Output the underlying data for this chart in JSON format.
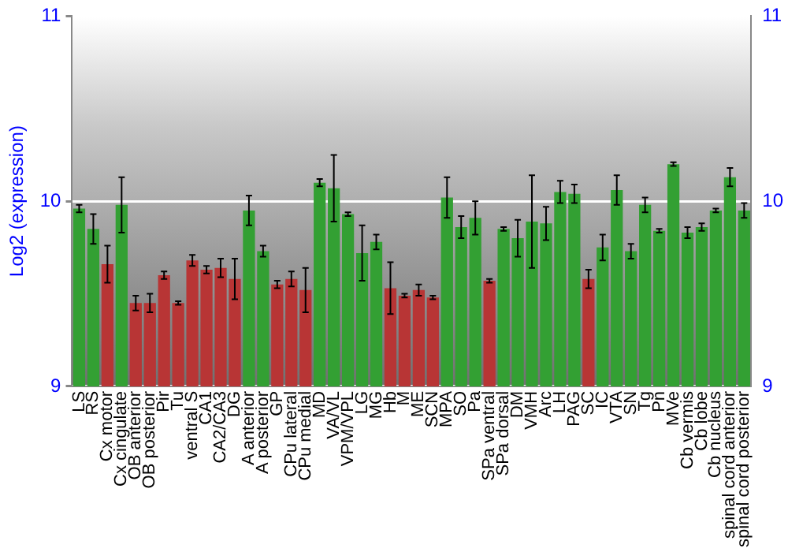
{
  "chart_data": {
    "type": "bar",
    "ylabel": "Log2 (expression)",
    "categories": [
      "LS",
      "RS",
      "Cx motor",
      "Cx cingulate",
      "OB anterior",
      "OB posterior",
      "Pir",
      "Tu",
      "ventral S",
      "CA1",
      "CA2/CA3",
      "DG",
      "A anterior",
      "A posterior",
      "GP",
      "CPu lateral",
      "CPu medial",
      "MD",
      "VA/VL",
      "VPM/VPL",
      "LG",
      "MG",
      "Hb",
      "M",
      "ME",
      "SCN",
      "MPA",
      "SO",
      "Pa",
      "SPa ventral",
      "SPa dorsal",
      "DM",
      "VMH",
      "Arc",
      "LH",
      "PAG",
      "SC",
      "IC",
      "VTA",
      "SN",
      "Tg",
      "Pn",
      "MVe",
      "Cb vermis",
      "Cb lobe",
      "Cb nucleus",
      "spinal cord anterior",
      "spinal cord posterior"
    ],
    "values": [
      9.96,
      9.85,
      9.66,
      9.98,
      9.45,
      9.45,
      9.6,
      9.45,
      9.68,
      9.63,
      9.64,
      9.58,
      9.95,
      9.73,
      9.55,
      9.58,
      9.52,
      10.1,
      10.07,
      9.93,
      9.72,
      9.78,
      9.53,
      9.49,
      9.52,
      9.48,
      10.02,
      9.86,
      9.91,
      9.57,
      9.85,
      9.8,
      9.89,
      9.88,
      10.05,
      10.04,
      9.58,
      9.75,
      10.06,
      9.73,
      9.98,
      9.84,
      10.2,
      9.83,
      9.86,
      9.95,
      10.13,
      9.95
    ],
    "errors": [
      0.02,
      0.08,
      0.1,
      0.15,
      0.04,
      0.05,
      0.02,
      0.01,
      0.03,
      0.02,
      0.05,
      0.11,
      0.08,
      0.03,
      0.02,
      0.04,
      0.12,
      0.02,
      0.18,
      0.01,
      0.15,
      0.04,
      0.14,
      0.01,
      0.03,
      0.01,
      0.11,
      0.06,
      0.09,
      0.01,
      0.01,
      0.1,
      0.25,
      0.09,
      0.06,
      0.05,
      0.05,
      0.07,
      0.08,
      0.04,
      0.04,
      0.01,
      0.01,
      0.03,
      0.02,
      0.01,
      0.05,
      0.04
    ],
    "colors": [
      "#33a033",
      "#33a033",
      "#b83535",
      "#33a033",
      "#b83535",
      "#b83535",
      "#b83535",
      "#b83535",
      "#b83535",
      "#b83535",
      "#b83535",
      "#b83535",
      "#33a033",
      "#33a033",
      "#b83535",
      "#b83535",
      "#b83535",
      "#33a033",
      "#33a033",
      "#33a033",
      "#33a033",
      "#33a033",
      "#b83535",
      "#b83535",
      "#b83535",
      "#b83535",
      "#33a033",
      "#33a033",
      "#33a033",
      "#b83535",
      "#33a033",
      "#33a033",
      "#33a033",
      "#33a033",
      "#33a033",
      "#33a033",
      "#b83535",
      "#33a033",
      "#33a033",
      "#33a033",
      "#33a033",
      "#33a033",
      "#33a033",
      "#33a033",
      "#33a033",
      "#33a033",
      "#33a033",
      "#33a033"
    ],
    "ylim": [
      9,
      11
    ],
    "yticks": [
      9,
      10,
      11
    ],
    "y2lim": [
      9,
      11
    ],
    "y2ticks": [
      9,
      10,
      11
    ],
    "grid": "y"
  }
}
